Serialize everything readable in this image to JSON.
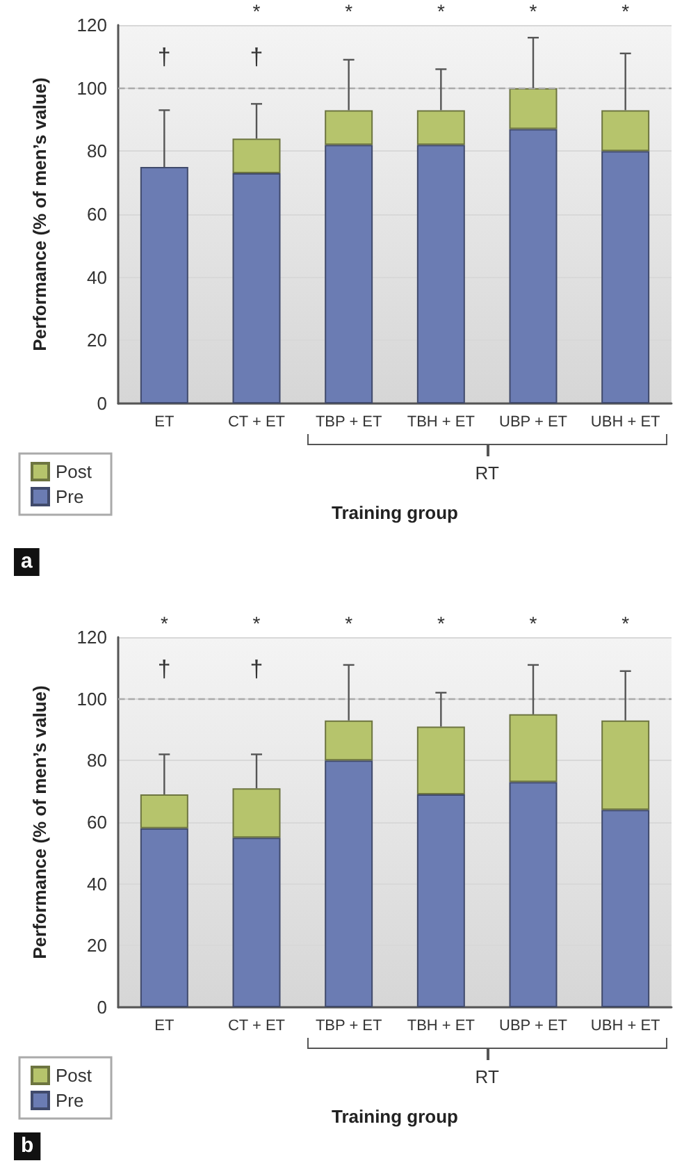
{
  "chart_data": [
    {
      "type": "bar",
      "stacked": true,
      "categories": [
        "ET",
        "CT + ET",
        "TBP + ET",
        "TBH + ET",
        "UBP + ET",
        "UBH + ET"
      ],
      "series": [
        {
          "name": "Pre",
          "color": "#6b7cb3",
          "values": [
            75,
            73,
            82,
            82,
            87,
            80
          ]
        },
        {
          "name": "Post",
          "color": "#b6c46c",
          "values": [
            0,
            11,
            11,
            11,
            13,
            13
          ],
          "errors": [
            [
              75,
              93
            ],
            [
              84,
              95
            ],
            [
              93,
              109
            ],
            [
              93,
              106
            ],
            [
              100,
              116
            ],
            [
              93,
              111
            ]
          ]
        }
      ],
      "ylabel": "Performance (% of men’s value)",
      "xlabel": "Training group",
      "ylim": [
        0,
        120
      ],
      "yticks": [
        0,
        20,
        40,
        60,
        80,
        100,
        120
      ],
      "grid": "y",
      "legend": "bottom left",
      "ref_lines": [
        {
          "axis": "y",
          "value": 100,
          "color": "#aaaaaa",
          "line_style": "dashed"
        }
      ],
      "annotations": [
        "†",
        "†",
        "*",
        "*",
        "*",
        "*",
        "*",
        "RT",
        "a"
      ]
    },
    {
      "type": "bar",
      "stacked": true,
      "categories": [
        "ET",
        "CT + ET",
        "TBP + ET",
        "TBH + ET",
        "UBP + ET",
        "UBH + ET"
      ],
      "series": [
        {
          "name": "Pre",
          "color": "#6b7cb3",
          "values": [
            58,
            55,
            80,
            69,
            73,
            64
          ]
        },
        {
          "name": "Post",
          "color": "#b6c46c",
          "values": [
            11,
            16,
            13,
            22,
            22,
            29
          ],
          "errors": [
            [
              69,
              82
            ],
            [
              71,
              82
            ],
            [
              93,
              111
            ],
            [
              91,
              102
            ],
            [
              95,
              111
            ],
            [
              93,
              109
            ]
          ]
        }
      ],
      "ylabel": "Performance (% of men’s value)",
      "xlabel": "Training group",
      "ylim": [
        0,
        120
      ],
      "yticks": [
        0,
        20,
        40,
        60,
        80,
        100,
        120
      ],
      "grid": "y",
      "legend": "bottom left",
      "ref_lines": [
        {
          "axis": "y",
          "value": 100,
          "color": "#aaaaaa",
          "line_style": "dashed"
        }
      ],
      "annotations": [
        "*",
        "*",
        "*",
        "*",
        "*",
        "*",
        "†",
        "†",
        "RT",
        "b"
      ]
    }
  ]
}
